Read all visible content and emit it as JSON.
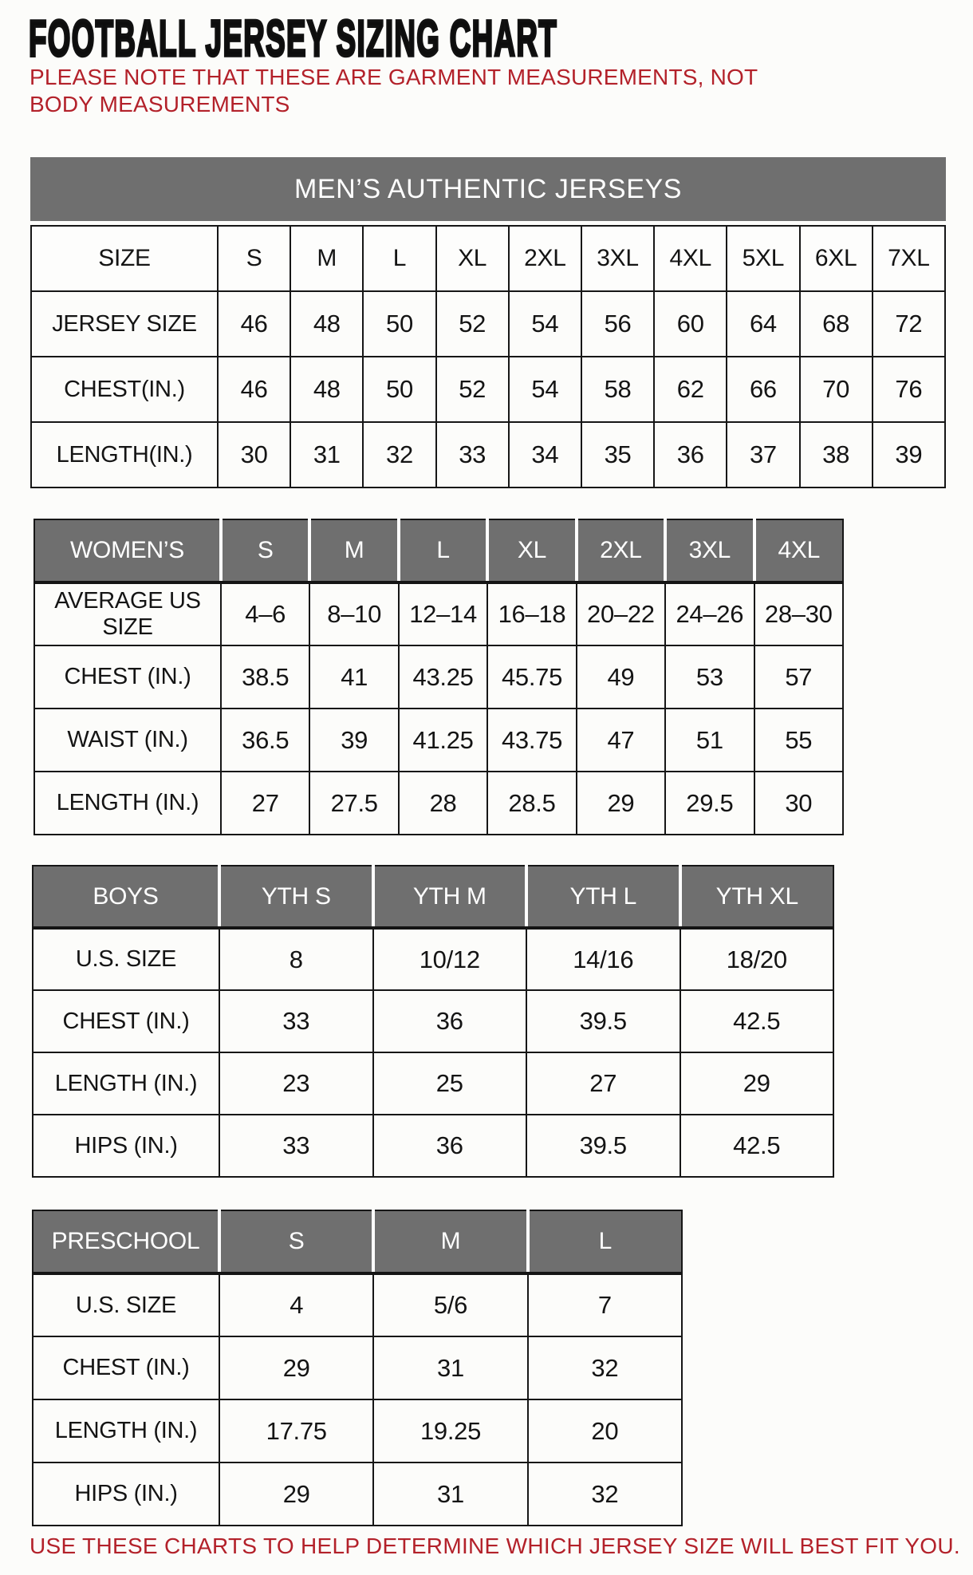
{
  "page": {
    "title": "FOOTBALL JERSEY SIZING CHART",
    "note": "PLEASE NOTE THAT THESE ARE GARMENT MEASUREMENTS, NOT BODY MEASUREMENTS",
    "footer": "USE THESE CHARTS TO HELP DETERMINE WHICH JERSEY SIZE WILL BEST FIT YOU.",
    "colors": {
      "accent_red": "#b3212a",
      "header_gray": "#6f6f6f",
      "header_text": "#ffffff",
      "grid_line": "#161616"
    }
  },
  "tables": [
    {
      "id": "mens",
      "banner": "MEN’S AUTHENTIC JERSEYS",
      "header": {
        "style": "plain",
        "label": "SIZE",
        "cols": [
          "S",
          "M",
          "L",
          "XL",
          "2XL",
          "3XL",
          "4XL",
          "5XL",
          "6XL",
          "7XL"
        ]
      },
      "rows": [
        {
          "label": "JERSEY SIZE",
          "values": [
            "46",
            "48",
            "50",
            "52",
            "54",
            "56",
            "60",
            "64",
            "68",
            "72"
          ]
        },
        {
          "label": "CHEST(IN.)",
          "values": [
            "46",
            "48",
            "50",
            "52",
            "54",
            "58",
            "62",
            "66",
            "70",
            "76"
          ]
        },
        {
          "label": "LENGTH(IN.)",
          "values": [
            "30",
            "31",
            "32",
            "33",
            "34",
            "35",
            "36",
            "37",
            "38",
            "39"
          ]
        }
      ]
    },
    {
      "id": "womens",
      "header": {
        "style": "gray",
        "label": "WOMEN’S",
        "cols": [
          "S",
          "M",
          "L",
          "XL",
          "2XL",
          "3XL",
          "4XL"
        ]
      },
      "rows": [
        {
          "label": "AVERAGE US SIZE",
          "values": [
            "4–6",
            "8–10",
            "12–14",
            "16–18",
            "20–22",
            "24–26",
            "28–30"
          ]
        },
        {
          "label": "CHEST (IN.)",
          "values": [
            "38.5",
            "41",
            "43.25",
            "45.75",
            "49",
            "53",
            "57"
          ]
        },
        {
          "label": "WAIST (IN.)",
          "values": [
            "36.5",
            "39",
            "41.25",
            "43.75",
            "47",
            "51",
            "55"
          ]
        },
        {
          "label": "LENGTH (IN.)",
          "values": [
            "27",
            "27.5",
            "28",
            "28.5",
            "29",
            "29.5",
            "30"
          ]
        }
      ]
    },
    {
      "id": "boys",
      "header": {
        "style": "gray",
        "label": "BOYS",
        "cols": [
          "YTH S",
          "YTH M",
          "YTH L",
          "YTH XL"
        ]
      },
      "rows": [
        {
          "label": "U.S. SIZE",
          "values": [
            "8",
            "10/12",
            "14/16",
            "18/20"
          ]
        },
        {
          "label": "CHEST (IN.)",
          "values": [
            "33",
            "36",
            "39.5",
            "42.5"
          ]
        },
        {
          "label": "LENGTH (IN.)",
          "values": [
            "23",
            "25",
            "27",
            "29"
          ]
        },
        {
          "label": "HIPS (IN.)",
          "values": [
            "33",
            "36",
            "39.5",
            "42.5"
          ]
        }
      ]
    },
    {
      "id": "preschool",
      "header": {
        "style": "gray",
        "label": "PRESCHOOL",
        "cols": [
          "S",
          "M",
          "L"
        ]
      },
      "rows": [
        {
          "label": "U.S. SIZE",
          "values": [
            "4",
            "5/6",
            "7"
          ]
        },
        {
          "label": "CHEST (IN.)",
          "values": [
            "29",
            "31",
            "32"
          ]
        },
        {
          "label": "LENGTH (IN.)",
          "values": [
            "17.75",
            "19.25",
            "20"
          ]
        },
        {
          "label": "HIPS (IN.)",
          "values": [
            "29",
            "31",
            "32"
          ]
        }
      ]
    }
  ]
}
